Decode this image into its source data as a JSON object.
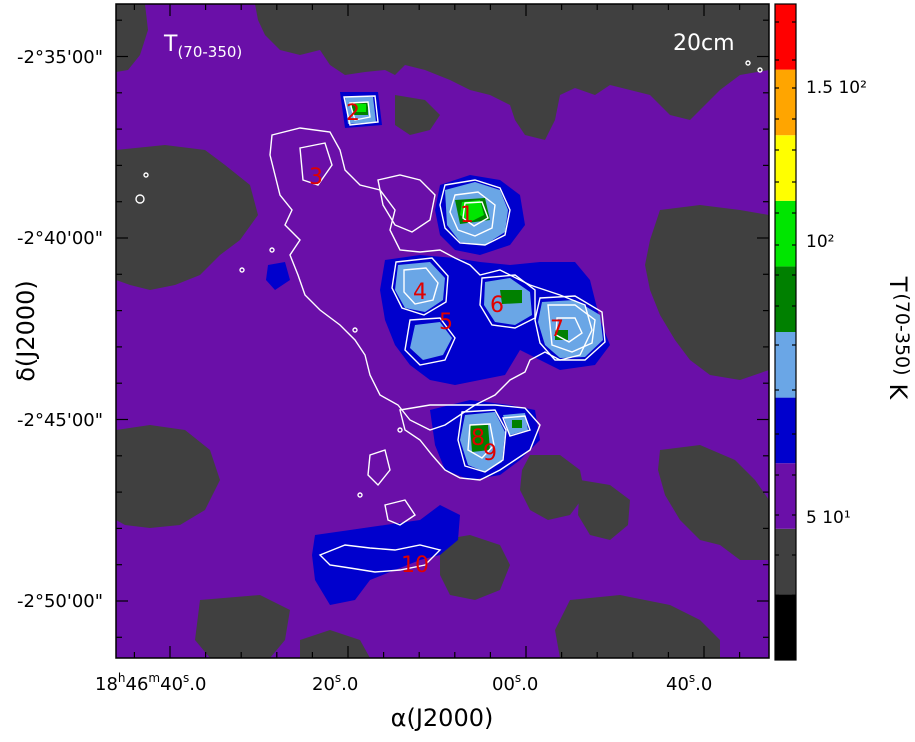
{
  "chart_data": {
    "type": "heatmap",
    "panel_label": "T(70-350)",
    "panel_label_main": "T",
    "panel_label_sub": "(70-350)",
    "contour_label": "20cm",
    "xlabel": "α(J2000)",
    "ylabel": "δ(J2000)",
    "x_ticks": [
      {
        "label_h": "18",
        "label_m": "46",
        "label_s": "40",
        "label_frac": "0",
        "full": "18h46m40.0s"
      },
      {
        "label_s": "20",
        "label_frac": "0",
        "full": "20.0s"
      },
      {
        "label_s": "00",
        "label_frac": "0",
        "full": "00.0s"
      },
      {
        "label_s": "40",
        "label_frac": "0",
        "full": "40.0s"
      }
    ],
    "y_ticks": [
      {
        "label": "-2°35'00\""
      },
      {
        "label": "-2°40'00\""
      },
      {
        "label": "-2°45'00\""
      },
      {
        "label": "-2°50'00\""
      }
    ],
    "colorbar": {
      "title": "T(70-350) K",
      "title_main": "T",
      "title_sub": "(70-350)",
      "title_unit": "K",
      "tick_labels": [
        "1.5 10²",
        "10²",
        "5 10¹"
      ],
      "colors": [
        "#000000",
        "#404040",
        "#6a0fa8",
        "#0000cd",
        "#6aa6e6",
        "#008000",
        "#00e600",
        "#ffff00",
        "#ffa500",
        "#ff0000"
      ]
    },
    "regions": [
      {
        "id": "1",
        "temperature_class": "green"
      },
      {
        "id": "2",
        "temperature_class": "green"
      },
      {
        "id": "3",
        "temperature_class": "purple"
      },
      {
        "id": "4",
        "temperature_class": "lightblue"
      },
      {
        "id": "5",
        "temperature_class": "blue"
      },
      {
        "id": "6",
        "temperature_class": "darkgreen"
      },
      {
        "id": "7",
        "temperature_class": "lightblue"
      },
      {
        "id": "8",
        "temperature_class": "darkgreen"
      },
      {
        "id": "9",
        "temperature_class": "lightblue"
      },
      {
        "id": "10",
        "temperature_class": "blue"
      }
    ],
    "colors": {
      "background_dark": "#404040",
      "background_purple": "#6a0fa8",
      "blue": "#0000cd",
      "light_blue": "#6aa6e6",
      "dark_green": "#008000",
      "green": "#00e600",
      "contour": "#ffffff",
      "label_red": "#e00000"
    }
  }
}
